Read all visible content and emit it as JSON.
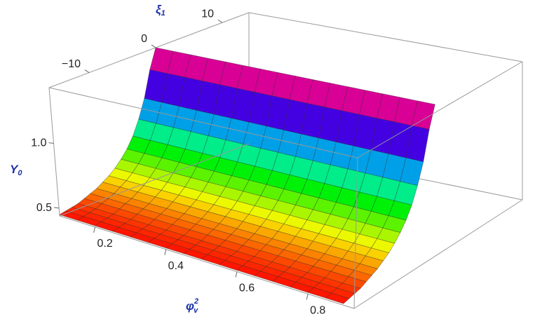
{
  "chart_data": {
    "type": "surface3d",
    "x_label": {
      "base": "φ",
      "sub": "v",
      "sup": "2"
    },
    "y_label": {
      "base": "ξ",
      "sub": "1"
    },
    "z_label": {
      "base": "Y",
      "sub": "0"
    },
    "x": [
      0.1,
      0.15,
      0.2,
      0.25,
      0.3,
      0.35,
      0.4,
      0.45,
      0.5,
      0.55,
      0.6,
      0.65,
      0.7,
      0.75,
      0.8,
      0.85,
      0.9
    ],
    "y": [
      -16,
      -15,
      -14,
      -13,
      -12,
      -11,
      -10,
      -9,
      -8,
      -7,
      -6,
      -5,
      -4,
      -3,
      -2,
      -1,
      0
    ],
    "values": [
      0.45,
      0.46,
      0.47,
      0.48,
      0.5,
      0.52,
      0.54,
      0.57,
      0.6,
      0.64,
      0.69,
      0.75,
      0.83,
      0.94,
      1.08,
      1.28,
      1.43
    ],
    "xlim": [
      0.1,
      0.93
    ],
    "ylim": [
      -16,
      14
    ],
    "zlim": [
      0.44,
      1.43
    ],
    "xticks": [
      0.2,
      0.4,
      0.6,
      0.8
    ],
    "yticks": [
      {
        "value": -10,
        "label": "−10"
      },
      0,
      10
    ],
    "zticks": [
      0.5,
      {
        "value": 1,
        "label": "1.0"
      }
    ],
    "colormap": "hue"
  }
}
